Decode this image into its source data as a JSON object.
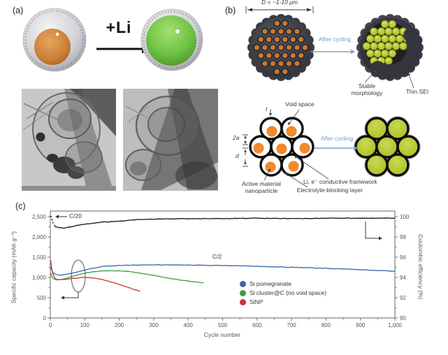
{
  "panel_a": {
    "label": "(a)",
    "lithiation_label": "+Li"
  },
  "panel_b": {
    "label": "(b)",
    "diameter_label": "D = ~1-10 μm",
    "after_cycling_top": "After cycling",
    "after_cycling_bottom": "After cycling",
    "stable_morphology": "Stable morphology",
    "thin_sei": "Thin SEI",
    "void_space": "Void space",
    "shell_thickness_label": "t",
    "particle_diameter_label": "2a",
    "pitch_label": "d",
    "active_material_label": "Active material nanoparticle",
    "electrolyte_blocking_label": "Electrolyte-blocking layer",
    "conductive_framework_label": "Li, e⁻ conductive framework"
  },
  "panel_c": {
    "label": "(c)",
    "chart_data": {
      "type": "line",
      "xlabel": "Cycle number",
      "ylabel_left": "Specific capacity (mAh g⁻¹)",
      "ylabel_right": "Coulombic efficiency (%)",
      "xlim": [
        0,
        1000
      ],
      "xticks": [
        0,
        100,
        200,
        300,
        400,
        500,
        600,
        700,
        800,
        900,
        1000
      ],
      "xtick_labels": [
        "0",
        "100",
        "200",
        "300",
        "400",
        "500",
        "600",
        "700",
        "800",
        "900",
        "1,000"
      ],
      "x_minor_step": 50,
      "ylim_left": [
        0,
        2500
      ],
      "yticks_left": [
        0,
        500,
        1000,
        1500,
        2000,
        2500
      ],
      "ytick_labels_left": [
        "0",
        "500",
        "1,000",
        "1,500",
        "2,000",
        "2,500"
      ],
      "y_left_minor_step": 250,
      "ylim_right": [
        90,
        100
      ],
      "yticks_right": [
        90,
        92,
        94,
        96,
        98,
        100
      ],
      "ytick_labels_right": [
        "90",
        "92",
        "94",
        "96",
        "98",
        "100"
      ],
      "y_right_minor_step": 1,
      "grid": false,
      "legend_position": "center-right",
      "annotations": {
        "c20": "C/20",
        "c2": "C/2"
      },
      "legend": [
        {
          "label": "Si pomegranate",
          "color": "#3465a8"
        },
        {
          "label": "Si cluster@C (no void space)",
          "color": "#3f9b3f"
        },
        {
          "label": "SiNP",
          "color": "#cc3333"
        }
      ],
      "series": [
        {
          "name": "Coulombic efficiency",
          "axis": "right",
          "color": "#111111",
          "amp": 0.05,
          "dash_until": 14,
          "x": [
            2,
            5,
            8,
            12,
            15,
            20,
            30,
            40,
            50,
            60,
            80,
            100,
            150,
            200,
            250,
            300,
            400,
            500,
            600,
            700,
            800,
            900,
            1000
          ],
          "y": [
            100.1,
            99.7,
            99.4,
            99.15,
            99.0,
            98.95,
            98.9,
            98.85,
            98.95,
            99.0,
            99.15,
            99.25,
            99.45,
            99.55,
            99.7,
            99.75,
            99.8,
            99.8,
            99.85,
            99.8,
            99.85,
            99.85,
            99.85
          ]
        },
        {
          "name": "Si pomegranate",
          "axis": "left",
          "color": "#3465a8",
          "amp": 12,
          "x": [
            1,
            5,
            10,
            15,
            20,
            30,
            40,
            50,
            75,
            100,
            125,
            150,
            175,
            200,
            250,
            300,
            350,
            400,
            450,
            500,
            550,
            600,
            650,
            700,
            750,
            800,
            850,
            900,
            950,
            1000
          ],
          "y": [
            1250,
            1160,
            1110,
            1080,
            1065,
            1060,
            1065,
            1080,
            1130,
            1180,
            1230,
            1270,
            1285,
            1295,
            1305,
            1310,
            1310,
            1305,
            1300,
            1295,
            1285,
            1275,
            1260,
            1250,
            1240,
            1225,
            1210,
            1190,
            1170,
            1150
          ]
        },
        {
          "name": "Si cluster@C (no void space)",
          "axis": "left",
          "color": "#3f9b3f",
          "amp": 10,
          "x": [
            1,
            5,
            10,
            15,
            20,
            30,
            40,
            50,
            75,
            100,
            125,
            150,
            175,
            200,
            225,
            250,
            275,
            300,
            325,
            350,
            375,
            400,
            425,
            445
          ],
          "y": [
            1120,
            1010,
            965,
            945,
            940,
            950,
            965,
            985,
            1050,
            1105,
            1140,
            1160,
            1165,
            1165,
            1150,
            1120,
            1085,
            1050,
            1010,
            975,
            940,
            910,
            885,
            870
          ]
        },
        {
          "name": "SiNP",
          "axis": "left",
          "color": "#cc3333",
          "amp": 14,
          "x": [
            1,
            3,
            5,
            8,
            12,
            16,
            20,
            30,
            40,
            50,
            75,
            100,
            115,
            130,
            145,
            160,
            175,
            190,
            205,
            220,
            235,
            250,
            260
          ],
          "y": [
            1430,
            1280,
            1170,
            1070,
            1000,
            965,
            950,
            945,
            950,
            960,
            985,
            1000,
            995,
            980,
            955,
            925,
            890,
            855,
            815,
            775,
            730,
            685,
            655
          ]
        }
      ]
    }
  }
}
